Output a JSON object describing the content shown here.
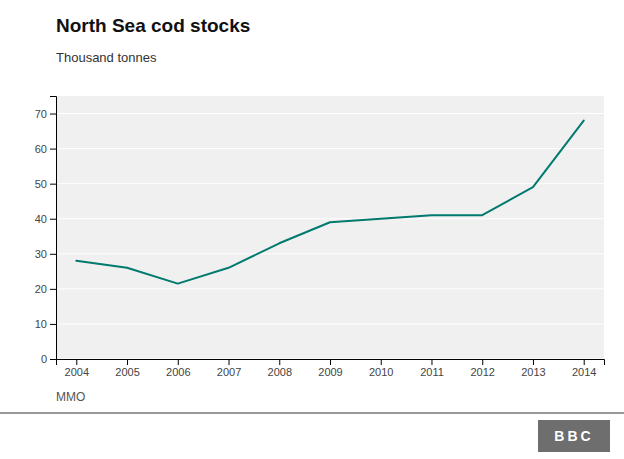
{
  "chart_data": {
    "type": "line",
    "title": "North Sea cod stocks",
    "subtitle": "Thousand tonnes",
    "annotations": [
      "MMO",
      "BBC"
    ],
    "x": [
      2004,
      2005,
      2006,
      2007,
      2008,
      2009,
      2010,
      2011,
      2012,
      2013,
      2014
    ],
    "values": [
      28,
      26,
      21.5,
      26,
      33,
      39,
      40,
      41,
      41,
      49,
      68
    ],
    "color": "#007a6e",
    "xlim": [
      2003.6,
      2014.4
    ],
    "xticks": [
      2004,
      2005,
      2006,
      2007,
      2008,
      2009,
      2010,
      2011,
      2012,
      2013,
      2014
    ],
    "ylim": [
      0,
      75
    ],
    "yticks": [
      0,
      10,
      20,
      30,
      40,
      50,
      60,
      70
    ],
    "grid": true
  }
}
